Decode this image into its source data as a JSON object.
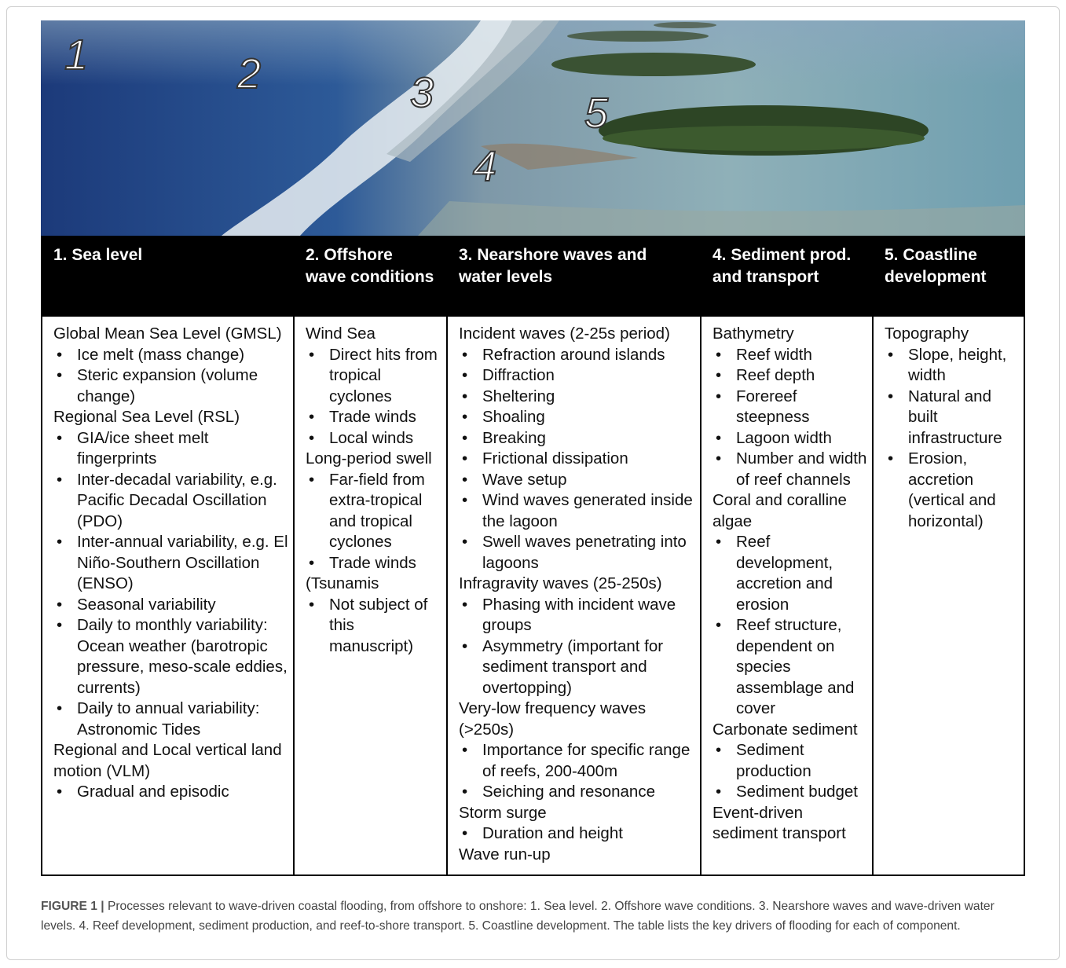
{
  "photo_labels": [
    "1",
    "2",
    "3",
    "4",
    "5"
  ],
  "table": {
    "headers": [
      "1. Sea level",
      "2. Offshore wave conditions",
      "3. Nearshore waves and water levels",
      "4. Sediment prod. and transport",
      "5. Coastline development"
    ],
    "columns": [
      {
        "groups": [
          {
            "heading": "Global Mean Sea Level (GMSL)",
            "bullets": [
              "Ice melt (mass change)",
              "Steric expansion (volume change)"
            ]
          },
          {
            "heading": "Regional Sea Level (RSL)",
            "bullets": [
              "GIA/ice sheet melt fingerprints",
              "Inter-decadal variability, e.g. Pacific Decadal Oscillation (PDO)",
              "Inter-annual variability, e.g. El Niño-Southern Oscillation (ENSO)",
              "Seasonal variability",
              "Daily to monthly variability: Ocean weather (barotropic pressure, meso-scale eddies, currents)",
              "Daily to annual variability: Astronomic Tides"
            ]
          },
          {
            "heading": "Regional and Local vertical land motion (VLM)",
            "bullets": [
              "Gradual and episodic"
            ]
          }
        ]
      },
      {
        "groups": [
          {
            "heading": "Wind Sea",
            "bullets": [
              "Direct hits from tropical cyclones",
              "Trade winds",
              "Local winds"
            ]
          },
          {
            "heading": "Long-period swell",
            "bullets": [
              "Far-field from extra-tropical and tropical cyclones",
              "Trade winds"
            ]
          },
          {
            "heading": "(Tsunamis",
            "bullets": [
              "Not subject of this manuscript)"
            ]
          }
        ]
      },
      {
        "groups": [
          {
            "heading": "Incident waves (2-25s period)",
            "bullets": [
              "Refraction around islands",
              "Diffraction",
              "Sheltering",
              "Shoaling",
              "Breaking",
              "Frictional dissipation",
              "Wave setup",
              "Wind waves generated inside the lagoon",
              "Swell waves penetrating into lagoons"
            ]
          },
          {
            "heading": "Infragravity waves (25-250s)",
            "bullets": [
              "Phasing with incident wave groups",
              "Asymmetry (important for sediment transport and overtopping)"
            ]
          },
          {
            "heading": "Very-low frequency waves (>250s)",
            "bullets": [
              "Importance for specific range of reefs, 200-400m",
              "Seiching and resonance"
            ]
          },
          {
            "heading": "Storm surge",
            "bullets": [
              "Duration and height"
            ]
          },
          {
            "heading": "Wave run-up"
          }
        ]
      },
      {
        "groups": [
          {
            "heading": "Bathymetry",
            "bullets": [
              "Reef width",
              "Reef depth",
              "Forereef steepness",
              "Lagoon width",
              "Number and width of reef channels"
            ]
          },
          {
            "heading": "Coral and coralline algae",
            "bullets": [
              "Reef development, accretion and erosion",
              "Reef structure, dependent on species assemblage and cover"
            ]
          },
          {
            "heading": "Carbonate sediment",
            "bullets": [
              "Sediment production",
              "Sediment budget"
            ]
          },
          {
            "heading": "Event-driven sediment transport"
          }
        ]
      },
      {
        "groups": [
          {
            "heading": "Topography",
            "bullets": [
              "Slope, height, width",
              "Natural and built infrastructure",
              "Erosion, accretion (vertical and horizontal)"
            ]
          }
        ]
      }
    ]
  },
  "caption": {
    "label": "FIGURE 1 |",
    "text": " Processes relevant to wave-driven coastal flooding, from offshore to onshore: 1. Sea level. 2. Offshore wave conditions. 3. Nearshore waves and wave-driven water levels. 4. Reef development, sediment production, and reef-to-shore transport. 5. Coastline development. The table lists the key drivers of flooding for each of component."
  }
}
